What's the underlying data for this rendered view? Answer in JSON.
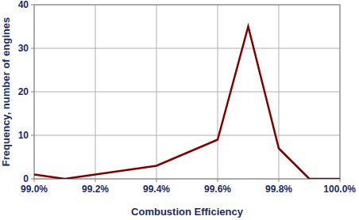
{
  "chart_data": {
    "type": "line",
    "x_label": "Combustion Efficiency",
    "y_label": "Frequency, number of engines",
    "x": [
      99.0,
      99.1,
      99.2,
      99.3,
      99.4,
      99.5,
      99.6,
      99.7,
      99.8,
      99.9,
      100.0
    ],
    "values": [
      1,
      0,
      1,
      2,
      3,
      6,
      9,
      35,
      7,
      0,
      0
    ],
    "color": "#800000",
    "xlim": [
      99.0,
      100.0
    ],
    "ylim": [
      0,
      40
    ],
    "xticks": [
      {
        "value": 99.0,
        "label": "99.0%"
      },
      {
        "value": 99.2,
        "label": "99.2%"
      },
      {
        "value": 99.4,
        "label": "99.4%"
      },
      {
        "value": 99.6,
        "label": "99.6%"
      },
      {
        "value": 99.8,
        "label": "99.8%"
      },
      {
        "value": 100.0,
        "label": "100.0%"
      }
    ],
    "yticks": [
      0,
      10,
      20,
      30,
      40
    ],
    "grid": true
  }
}
